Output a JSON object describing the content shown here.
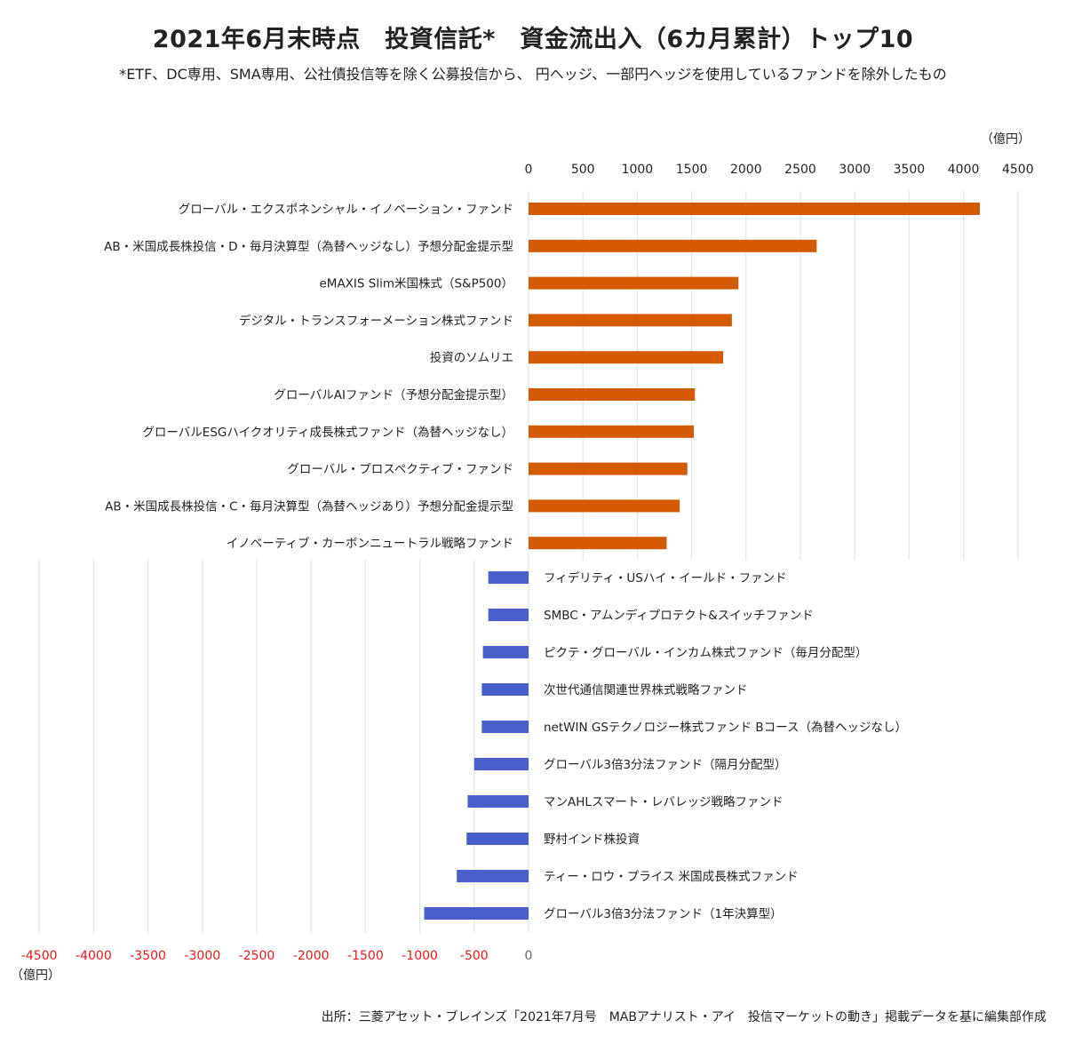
{
  "title": "2021年6月末時点　投資信託*　資金流出入（6カ月累計）トップ10",
  "subtitle": "*ETF、DC専用、SMA専用、公社債投信等を除く公募投信から、 円ヘッジ、一部円ヘッジを使用しているファンドを除外したもの",
  "source": "出所：三菱アセット・ブレインズ「2021年7月号　MABアナリスト・アイ　投信マーケットの動き」掲載データを基に編集部作成",
  "colors": {
    "inflow": "#D45A00",
    "outflow": "#4A5FCC",
    "negative_tick": "#E8191A",
    "grid": "#E6E6E6"
  },
  "chart_data": [
    {
      "type": "bar",
      "orientation": "horizontal",
      "unit": "（億円）",
      "xlim": [
        0,
        4500
      ],
      "ticks": [
        "0",
        "500",
        "1000",
        "1500",
        "2000",
        "2500",
        "3000",
        "3500",
        "4000",
        "4500"
      ],
      "tick_position": "top",
      "grid": true,
      "categories": [
        "グローバル・エクスポネンシャル・イノベーション・ファンド",
        "AB・米国成長株投信・D・毎月決算型（為替ヘッジなし）予想分配金提示型",
        "eMAXIS Slim米国株式（S&P500）",
        "デジタル・トランスフォーメーション株式ファンド",
        "投資のソムリエ",
        "グローバルAIファンド（予想分配金提示型）",
        "グローバルESGハイクオリティ成長株式ファンド（為替ヘッジなし）",
        "グローバル・プロスペクティブ・ファンド",
        "AB・米国成長株投信・C・毎月決算型（為替ヘッジあり）予想分配金提示型",
        "イノベーティブ・カーボンニュートラル戦略ファンド"
      ],
      "values": [
        4150,
        2650,
        1930,
        1870,
        1790,
        1530,
        1520,
        1460,
        1390,
        1270
      ]
    },
    {
      "type": "bar",
      "orientation": "horizontal",
      "unit": "（億円）",
      "xlim": [
        -4500,
        0
      ],
      "ticks": [
        "-4500",
        "-4000",
        "-3500",
        "-3000",
        "-2500",
        "-2000",
        "-1500",
        "-1000",
        "-500",
        "0"
      ],
      "tick_position": "bottom",
      "grid": true,
      "categories": [
        "フィデリティ・USハイ・イールド・ファンド",
        "SMBC・アムンディプロテクト&スイッチファンド",
        "ピクテ・グローバル・インカム株式ファンド（毎月分配型）",
        "次世代通信関連世界株式戦略ファンド",
        "netWIN GSテクノロジー株式ファンド Bコース（為替ヘッジなし）",
        "グローバル3倍3分法ファンド（隔月分配型）",
        "マンAHLスマート・レバレッジ戦略ファンド",
        "野村インド株投資",
        "ティー・ロウ・プライス 米国成長株式ファンド",
        "グローバル3倍3分法ファンド（1年決算型）"
      ],
      "values": [
        -370,
        -370,
        -420,
        -430,
        -430,
        -500,
        -560,
        -570,
        -660,
        -960
      ]
    }
  ]
}
